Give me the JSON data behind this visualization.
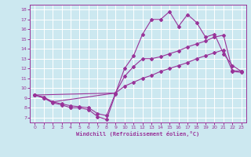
{
  "xlabel": "Windchill (Refroidissement éolien,°C)",
  "xlim": [
    -0.5,
    23.5
  ],
  "ylim": [
    6.5,
    18.5
  ],
  "xticks": [
    0,
    1,
    2,
    3,
    4,
    5,
    6,
    7,
    8,
    9,
    10,
    11,
    12,
    13,
    14,
    15,
    16,
    17,
    18,
    19,
    20,
    21,
    22,
    23
  ],
  "yticks": [
    7,
    8,
    9,
    10,
    11,
    12,
    13,
    14,
    15,
    16,
    17,
    18
  ],
  "bg_color": "#cce8f0",
  "line_color": "#993399",
  "grid_color": "#ffffff",
  "line1_x": [
    0,
    1,
    2,
    3,
    4,
    5,
    6,
    7,
    8,
    9
  ],
  "line1_y": [
    9.3,
    9.0,
    8.5,
    8.3,
    8.0,
    8.0,
    7.8,
    7.1,
    6.8,
    9.4
  ],
  "line2_x": [
    0,
    1,
    2,
    3,
    4,
    5,
    6,
    7,
    8,
    9,
    10,
    11,
    12,
    13,
    14,
    15,
    16,
    17,
    18,
    19,
    20,
    21,
    22,
    23
  ],
  "line2_y": [
    9.3,
    9.1,
    8.6,
    8.4,
    8.2,
    8.1,
    8.0,
    7.4,
    7.2,
    9.5,
    10.2,
    10.6,
    11.0,
    11.3,
    11.7,
    12.0,
    12.3,
    12.6,
    13.0,
    13.3,
    13.6,
    13.9,
    11.7,
    11.6
  ],
  "line3_x": [
    0,
    1,
    2,
    9,
    10,
    11,
    12,
    13,
    14,
    15,
    16,
    17,
    18,
    19,
    20,
    21,
    22,
    23
  ],
  "line3_y": [
    9.3,
    9.0,
    8.6,
    9.5,
    11.2,
    12.2,
    13.0,
    13.0,
    13.2,
    13.5,
    13.8,
    14.2,
    14.5,
    14.8,
    15.2,
    15.4,
    11.8,
    11.7
  ],
  "line4_x": [
    0,
    9,
    10,
    11,
    12,
    13,
    14,
    15,
    16,
    17,
    18,
    19,
    20,
    21,
    22,
    23
  ],
  "line4_y": [
    9.3,
    9.5,
    12.0,
    13.3,
    15.5,
    17.0,
    17.0,
    17.8,
    16.3,
    17.5,
    16.7,
    15.2,
    15.5,
    13.5,
    12.3,
    11.7
  ]
}
